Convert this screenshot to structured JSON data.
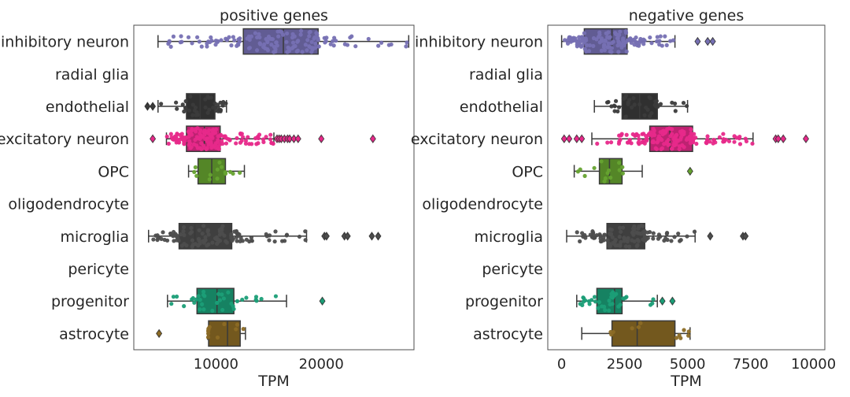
{
  "chart_data": [
    {
      "type": "box",
      "title": "positive genes",
      "xlabel": "TPM",
      "ylabel": "",
      "xlim": [
        2200,
        28800
      ],
      "xticks": [
        10000,
        20000
      ],
      "xtick_labels": [
        "10000",
        "20000"
      ],
      "categories": [
        "inhibitory neuron",
        "radial glia",
        "endothelial",
        "excitatory neuron",
        "OPC",
        "oligodendrocyte",
        "microglia",
        "pericyte",
        "progenitor",
        "astrocyte"
      ],
      "boxes": [
        {
          "category": "inhibitory neuron",
          "color": "#7670b3",
          "whislo": 4500,
          "q1": 12600,
          "med": 16400,
          "q3": 19700,
          "whishi": 28300,
          "fliers": [],
          "n_points": 140
        },
        {
          "category": "radial glia",
          "empty": true
        },
        {
          "category": "endothelial",
          "color": "#3b3b3b",
          "whislo": 4500,
          "q1": 7200,
          "med": 8500,
          "q3": 9900,
          "whishi": 11000,
          "fliers": [
            3500,
            4000
          ],
          "n_points": 40
        },
        {
          "category": "excitatory neuron",
          "color": "#e7298a",
          "whislo": 5300,
          "q1": 7200,
          "med": 8900,
          "q3": 10400,
          "whishi": 15500,
          "fliers": [
            4000,
            15800,
            16000,
            16200,
            16500,
            16800,
            17000,
            17400,
            17800,
            20000,
            24900
          ],
          "n_points": 150
        },
        {
          "category": "OPC",
          "color": "#66a330",
          "whislo": 7400,
          "q1": 8300,
          "med": 9600,
          "q3": 10900,
          "whishi": 12700,
          "fliers": [],
          "n_points": 14
        },
        {
          "category": "oligodendrocyte",
          "empty": true
        },
        {
          "category": "microglia",
          "color": "#4d4d4d",
          "whislo": 3600,
          "q1": 6500,
          "med": 8000,
          "q3": 11500,
          "whishi": 18600,
          "fliers": [
            20300,
            20500,
            22200,
            22500,
            24800,
            25400
          ],
          "n_points": 110
        },
        {
          "category": "pericyte",
          "empty": true
        },
        {
          "category": "progenitor",
          "color": "#1b9e77",
          "whislo": 5400,
          "q1": 8200,
          "med": 10100,
          "q3": 11700,
          "whishi": 16700,
          "fliers": [
            20100
          ],
          "n_points": 36
        },
        {
          "category": "astrocyte",
          "color": "#8c6b25",
          "whislo": 9200,
          "q1": 9300,
          "med": 11100,
          "q3": 12300,
          "whishi": 12800,
          "fliers": [
            4600
          ],
          "n_points": 12
        }
      ]
    },
    {
      "type": "box",
      "title": "negative genes",
      "xlabel": "TPM",
      "ylabel": "",
      "xlim": [
        -550,
        10450
      ],
      "xticks": [
        0,
        2500,
        5000,
        7500,
        10000
      ],
      "xtick_labels": [
        "0",
        "2500",
        "5000",
        "7500",
        "10000"
      ],
      "categories": [
        "inhibitory neuron",
        "radial glia",
        "endothelial",
        "excitatory neuron",
        "OPC",
        "oligodendrocyte",
        "microglia",
        "pericyte",
        "progenitor",
        "astrocyte"
      ],
      "boxes": [
        {
          "category": "inhibitory neuron",
          "color": "#7670b3",
          "whislo": 0,
          "q1": 900,
          "med": 2000,
          "q3": 2600,
          "whishi": 4500,
          "fliers": [
            5400,
            5800,
            6000
          ],
          "n_points": 140
        },
        {
          "category": "radial glia",
          "empty": true
        },
        {
          "category": "endothelial",
          "color": "#3b3b3b",
          "whislo": 1300,
          "q1": 2400,
          "med": 3100,
          "q3": 3800,
          "whishi": 5000,
          "fliers": [],
          "n_points": 40
        },
        {
          "category": "excitatory neuron",
          "color": "#e7298a",
          "whislo": 1200,
          "q1": 3500,
          "med": 4300,
          "q3": 5200,
          "whishi": 7600,
          "fliers": [
            100,
            300,
            600,
            800,
            8500,
            8600,
            8800,
            9700
          ],
          "n_points": 150
        },
        {
          "category": "OPC",
          "color": "#66a330",
          "whislo": 500,
          "q1": 1500,
          "med": 1900,
          "q3": 2400,
          "whishi": 3200,
          "fliers": [
            5100
          ],
          "n_points": 14
        },
        {
          "category": "oligodendrocyte",
          "empty": true
        },
        {
          "category": "microglia",
          "color": "#4d4d4d",
          "whislo": 200,
          "q1": 1800,
          "med": 2400,
          "q3": 3300,
          "whishi": 5300,
          "fliers": [
            5900,
            7200,
            7300
          ],
          "n_points": 110
        },
        {
          "category": "pericyte",
          "empty": true
        },
        {
          "category": "progenitor",
          "color": "#1b9e77",
          "whislo": 600,
          "q1": 1400,
          "med": 2100,
          "q3": 2400,
          "whishi": 3800,
          "fliers": [
            4000,
            4400
          ],
          "n_points": 36
        },
        {
          "category": "astrocyte",
          "color": "#8c6b25",
          "whislo": 800,
          "q1": 2000,
          "med": 3000,
          "q3": 4500,
          "whishi": 5100,
          "fliers": [],
          "n_points": 12
        }
      ]
    }
  ]
}
